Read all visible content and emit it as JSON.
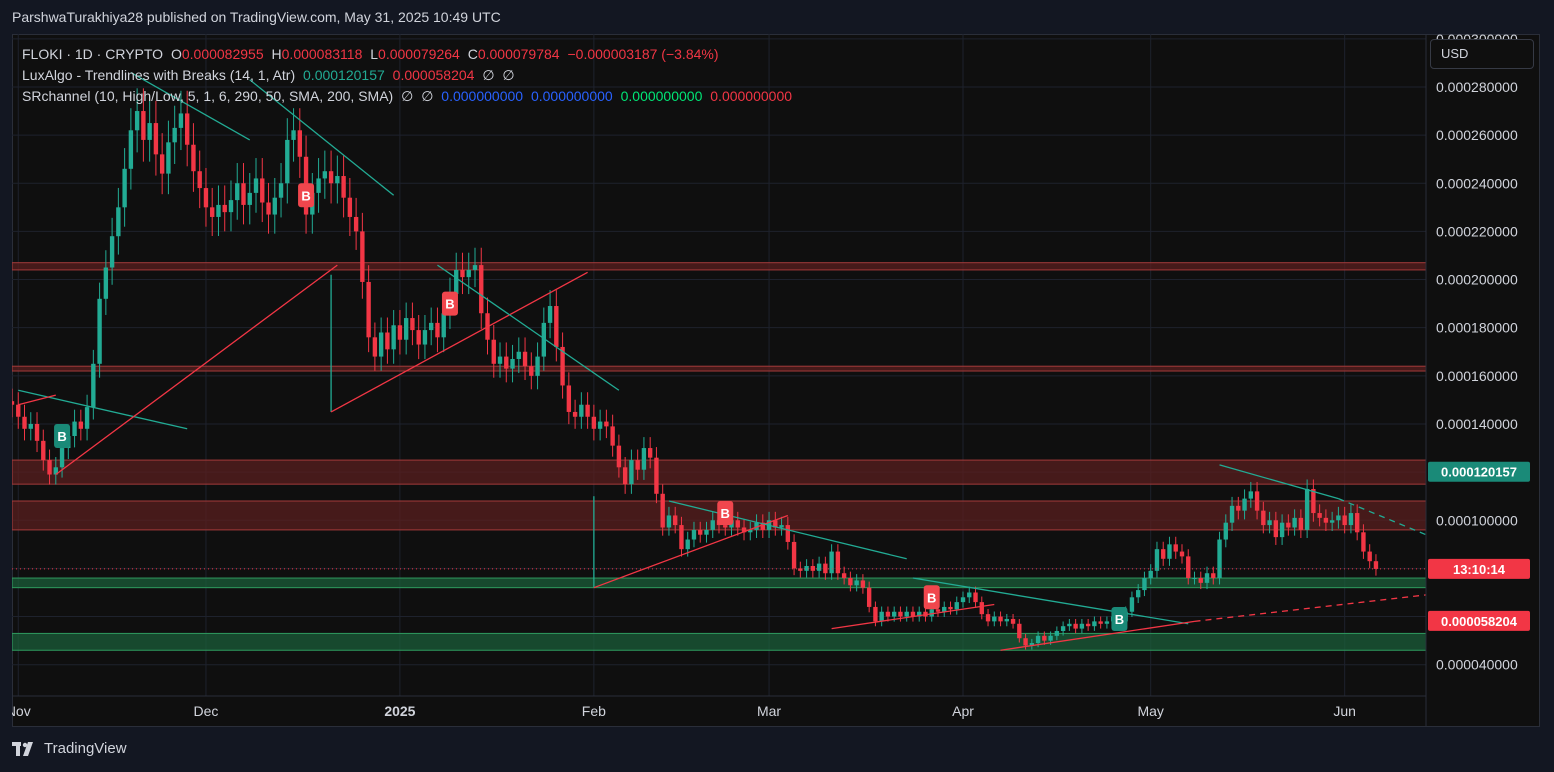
{
  "header": {
    "publish_text": "ParshwaTurakhiya28 published on TradingView.com, May 31, 2025 10:49 UTC"
  },
  "legend": {
    "symbol": "FLOKI · 1D · CRYPTO",
    "o_label": "O",
    "o_value": "0.000082955",
    "h_label": "H",
    "h_value": "0.000083118",
    "l_label": "L",
    "l_value": "0.000079264",
    "c_label": "C",
    "c_value": "0.000079784",
    "change": "−0.000003187 (−3.84%)",
    "indicator1_name": "LuxAlgo - Trendlines with Breaks (14, 1, Atr)",
    "indicator1_v1": "0.000120157",
    "indicator1_v2": "0.000058204",
    "indicator1_v3": "∅",
    "indicator1_v4": "∅",
    "indicator2_name": "SRchannel (10, High/Low, 5, 1, 6, 290, 50, SMA, 200, SMA)",
    "indicator2_v1": "∅",
    "indicator2_v2": "∅",
    "indicator2_v3": "0.000000000",
    "indicator2_v4": "0.000000000",
    "indicator2_v5": "0.000000000",
    "indicator2_v6": "0.000000000"
  },
  "toolbar": {
    "currency_label": "USD"
  },
  "footer": {
    "brand": "TradingView"
  },
  "colors": {
    "up": "#22ab94",
    "down": "#f23645",
    "trend_teal": "#22ab94",
    "trend_red": "#f23645",
    "resistance_zone": "#5a1f1f",
    "support_zone": "#1b5e3a"
  },
  "chart_data": {
    "type": "candlestick",
    "symbol": "FLOKI",
    "timeframe": "1D",
    "currency": "USD",
    "yaxis": {
      "range": [
        2.7e-05,
        0.000302
      ],
      "ticks": [
        4e-05,
        6e-05,
        8e-05,
        0.0001,
        0.00012,
        0.00014,
        0.00016,
        0.00018,
        0.0002,
        0.00022,
        0.00024,
        0.00026,
        0.00028,
        0.0003
      ],
      "tick_labels": [
        "0.000040000",
        "0.000060000",
        "0.000080000",
        "0.000100000",
        "0.000120000",
        "0.000140000",
        "0.000160000",
        "0.000180000",
        "0.000200000",
        "0.000220000",
        "0.000240000",
        "0.000260000",
        "0.000280000",
        "0.000300000"
      ]
    },
    "xaxis": {
      "range": [
        "2024-10-31",
        "2025-06-14"
      ],
      "ticks": [
        {
          "date": "2024-11-01",
          "label": "Nov",
          "bold": false
        },
        {
          "date": "2024-12-01",
          "label": "Dec",
          "bold": false
        },
        {
          "date": "2025-01-01",
          "label": "2025",
          "bold": true
        },
        {
          "date": "2025-02-01",
          "label": "Feb",
          "bold": false
        },
        {
          "date": "2025-03-01",
          "label": "Mar",
          "bold": false
        },
        {
          "date": "2025-04-01",
          "label": "Apr",
          "bold": false
        },
        {
          "date": "2025-05-01",
          "label": "May",
          "bold": false
        },
        {
          "date": "2025-06-01",
          "label": "Jun",
          "bold": false
        }
      ]
    },
    "start_date": "2024-10-31",
    "closes": [
      0.000148,
      0.000143,
      0.000138,
      0.00014,
      0.000133,
      0.000125,
      0.000119,
      0.000122,
      0.00013,
      0.000135,
      0.000141,
      0.000138,
      0.000147,
      0.000165,
      0.000192,
      0.000205,
      0.000218,
      0.00023,
      0.000246,
      0.000262,
      0.00027,
      0.000258,
      0.000265,
      0.000252,
      0.000244,
      0.000257,
      0.000263,
      0.000269,
      0.000256,
      0.000245,
      0.000238,
      0.00023,
      0.000226,
      0.000231,
      0.000228,
      0.000233,
      0.00024,
      0.000231,
      0.000236,
      0.000242,
      0.000232,
      0.000227,
      0.000234,
      0.00024,
      0.000258,
      0.000262,
      0.000251,
      0.000227,
      0.000236,
      0.000242,
      0.000245,
      0.00024,
      0.000243,
      0.000234,
      0.000226,
      0.00022,
      0.000199,
      0.000176,
      0.000168,
      0.000178,
      0.000171,
      0.000181,
      0.000175,
      0.000184,
      0.000179,
      0.000173,
      0.000179,
      0.000182,
      0.000176,
      0.000186,
      0.000194,
      0.000204,
      0.000201,
      0.000204,
      0.000206,
      0.000186,
      0.000175,
      0.000165,
      0.000168,
      0.000163,
      0.000167,
      0.00017,
      0.000164,
      0.00016,
      0.000168,
      0.000182,
      0.000189,
      0.000172,
      0.000156,
      0.000145,
      0.000143,
      0.000148,
      0.000143,
      0.000138,
      0.000141,
      0.000139,
      0.000131,
      0.000122,
      0.000115,
      0.000125,
      0.000121,
      0.00013,
      0.000126,
      0.000111,
      9.7e-05,
      0.000102,
      9.8e-05,
      8.8e-05,
      9.2e-05,
      9.6e-05,
      9.4e-05,
      9.6e-05,
      0.0001,
      9.8e-05,
      9.7e-05,
      0.0001,
      9.7e-05,
      9.5e-05,
      9.6e-05,
      9.9e-05,
      9.6e-05,
      0.0001,
      9.7e-05,
      9.8e-05,
      9.1e-05,
      8e-05,
      7.9e-05,
      8.1e-05,
      7.9e-05,
      8.2e-05,
      7.8e-05,
      8.7e-05,
      7.8e-05,
      7.6e-05,
      7.3e-05,
      7.5e-05,
      7.2e-05,
      6.4e-05,
      5.8e-05,
      6.2e-05,
      6e-05,
      6.2e-05,
      6e-05,
      6.2e-05,
      6e-05,
      6.2e-05,
      6e-05,
      6.3e-05,
      6.2e-05,
      6.4e-05,
      6.3e-05,
      6.6e-05,
      6.8e-05,
      7e-05,
      6.6e-05,
      6.1e-05,
      5.8e-05,
      6e-05,
      5.8e-05,
      5.9e-05,
      5.7e-05,
      5.1e-05,
      4.8e-05,
      4.9e-05,
      5.2e-05,
      5e-05,
      5.2e-05,
      5.4e-05,
      5.6e-05,
      5.7e-05,
      5.5e-05,
      5.7e-05,
      5.6e-05,
      5.8e-05,
      5.7e-05,
      5.8e-05,
      6e-05,
      5.8e-05,
      6.2e-05,
      6.8e-05,
      7.1e-05,
      7.6e-05,
      7.9e-05,
      8.8e-05,
      8.4e-05,
      9e-05,
      8.7e-05,
      8.5e-05,
      7.6e-05,
      7.6e-05,
      7.4e-05,
      7.8e-05,
      7.6e-05,
      9.2e-05,
      9.9e-05,
      0.000106,
      0.000104,
      0.000109,
      0.000112,
      0.000104,
      9.8e-05,
      0.0001,
      9.3e-05,
      9.9e-05,
      9.7e-05,
      0.000101,
      9.6e-05,
      0.000113,
      0.000103,
      0.000101,
      9.9e-05,
      0.0001,
      0.000102,
      9.8e-05,
      0.000103,
      9.5e-05,
      8.7e-05,
      8.3e-05,
      7.9784e-05
    ],
    "trendlines": [
      {
        "color": "teal",
        "from": [
          "2024-11-01",
          0.000154
        ],
        "to": [
          "2024-11-28",
          0.000138
        ],
        "dashed": false
      },
      {
        "color": "red",
        "from": [
          "2024-11-01",
          0.000148
        ],
        "to": [
          "2024-11-07",
          0.000152
        ],
        "dashed": false
      },
      {
        "color": "red",
        "from": [
          "2024-11-07",
          0.000119
        ],
        "to": [
          "2024-12-22",
          0.000206
        ],
        "dashed": false
      },
      {
        "color": "teal",
        "from": [
          "2024-11-19",
          0.000286
        ],
        "to": [
          "2024-12-08",
          0.000258
        ],
        "dashed": false
      },
      {
        "color": "teal",
        "from": [
          "2024-12-08",
          0.000283
        ],
        "to": [
          "2024-12-31",
          0.000235
        ],
        "dashed": false
      },
      {
        "color": "teal",
        "from": [
          "2024-12-21",
          0.000202
        ],
        "to": [
          "2024-12-21",
          0.000145
        ],
        "dashed": false
      },
      {
        "color": "red",
        "from": [
          "2024-12-21",
          0.000145
        ],
        "to": [
          "2025-01-31",
          0.000203
        ],
        "dashed": false
      },
      {
        "color": "teal",
        "from": [
          "2025-01-07",
          0.000206
        ],
        "to": [
          "2025-02-05",
          0.000154
        ],
        "dashed": false
      },
      {
        "color": "teal",
        "from": [
          "2025-02-01",
          0.00011
        ],
        "to": [
          "2025-02-01",
          7.2e-05
        ],
        "dashed": false
      },
      {
        "color": "red",
        "from": [
          "2025-02-01",
          7.2e-05
        ],
        "to": [
          "2025-03-04",
          0.000102
        ],
        "dashed": false
      },
      {
        "color": "teal",
        "from": [
          "2025-02-13",
          0.000108
        ],
        "to": [
          "2025-03-23",
          8.4e-05
        ],
        "dashed": false
      },
      {
        "color": "red",
        "from": [
          "2025-03-11",
          5.5e-05
        ],
        "to": [
          "2025-04-06",
          6.5e-05
        ],
        "dashed": false
      },
      {
        "color": "teal",
        "from": [
          "2025-03-24",
          7.6e-05
        ],
        "to": [
          "2025-05-07",
          5.7e-05
        ],
        "dashed": false
      },
      {
        "color": "red",
        "from": [
          "2025-04-07",
          4.6e-05
        ],
        "to": [
          "2025-05-08",
          5.8e-05
        ],
        "dashed": false
      },
      {
        "color": "red",
        "from": [
          "2025-05-08",
          5.8e-05
        ],
        "to": [
          "2025-06-14",
          6.9e-05
        ],
        "dashed": true
      },
      {
        "color": "teal",
        "from": [
          "2025-05-12",
          0.000123
        ],
        "to": [
          "2025-05-31",
          0.000109
        ],
        "dashed": false
      },
      {
        "color": "teal",
        "from": [
          "2025-05-31",
          0.000109
        ],
        "to": [
          "2025-06-14",
          9.4e-05
        ],
        "dashed": true
      }
    ],
    "zones": [
      {
        "type": "resistance",
        "low": 0.000204,
        "high": 0.000207
      },
      {
        "type": "resistance",
        "low": 0.000162,
        "high": 0.000164
      },
      {
        "type": "resistance",
        "low": 0.000115,
        "high": 0.000125
      },
      {
        "type": "resistance",
        "low": 9.6e-05,
        "high": 0.000108
      },
      {
        "type": "support",
        "low": 7.2e-05,
        "high": 7.6e-05
      },
      {
        "type": "support",
        "low": 4.6e-05,
        "high": 5.3e-05
      }
    ],
    "break_markers": [
      {
        "date": "2024-11-08",
        "price": 0.000135,
        "color": "teal",
        "label": "B"
      },
      {
        "date": "2024-12-17",
        "price": 0.000235,
        "color": "red",
        "label": "B"
      },
      {
        "date": "2025-01-09",
        "price": 0.00019,
        "color": "red",
        "label": "B"
      },
      {
        "date": "2025-02-22",
        "price": 0.000103,
        "color": "red",
        "label": "B"
      },
      {
        "date": "2025-03-27",
        "price": 6.8e-05,
        "color": "red",
        "label": "B"
      },
      {
        "date": "2025-04-26",
        "price": 5.9e-05,
        "color": "teal",
        "label": "B"
      }
    ],
    "price_labels": [
      {
        "value": 0.000120157,
        "text": "0.000120157",
        "color": "teal"
      },
      {
        "value": 7.9784e-05,
        "text": "13:10:14",
        "color": "red",
        "sublabel": "0.000079784"
      },
      {
        "value": 5.8204e-05,
        "text": "0.000058204",
        "color": "red"
      }
    ],
    "last_price": 7.9784e-05
  }
}
